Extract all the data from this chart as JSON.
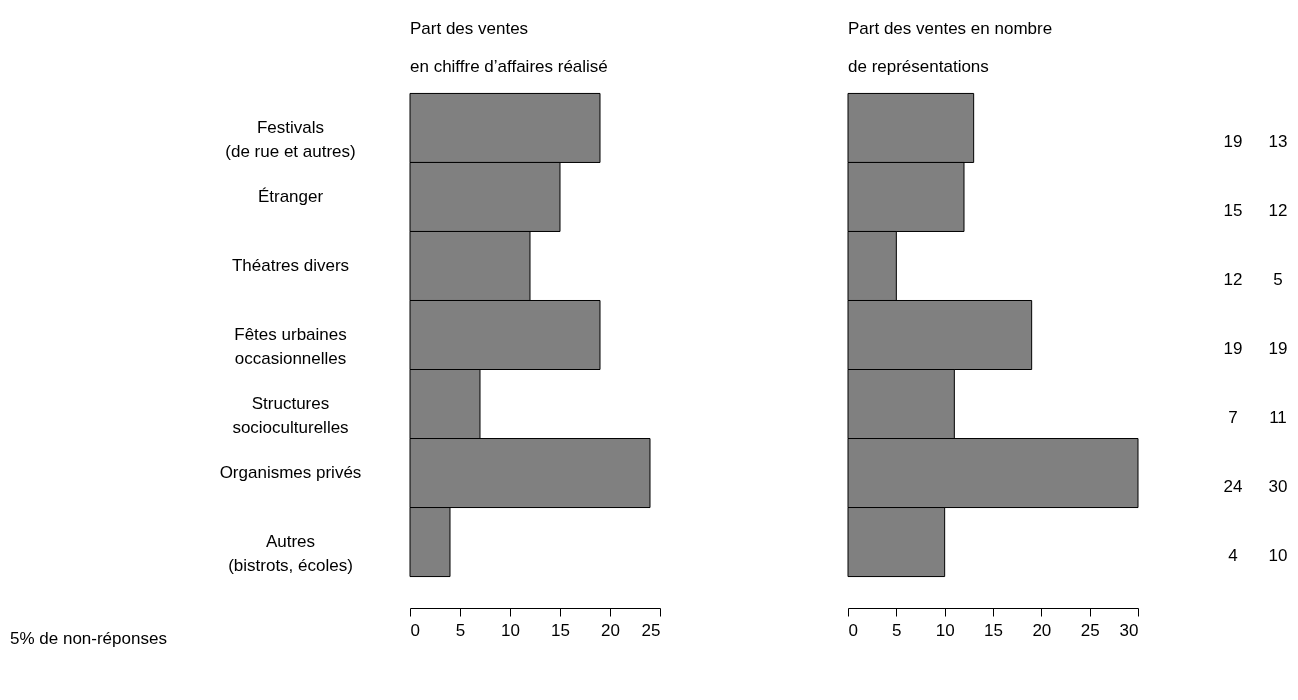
{
  "chart_data": [
    {
      "type": "bar",
      "orientation": "horizontal",
      "title": "Part des ventes\nen chiffre d’affaires réalisé",
      "categories": [
        "Festivals\n(de rue et autres)",
        "Étranger",
        "Théatres divers",
        "Fêtes urbaines\noccasionnelles",
        "Structures\nsocioculturelles",
        "Organismes privés",
        "Autres\n(bistrots, écoles)"
      ],
      "values": [
        19,
        15,
        12,
        19,
        7,
        24,
        4
      ],
      "color": "#808080",
      "xlim": [
        0,
        25
      ],
      "xticks": [
        0,
        5,
        10,
        15,
        20,
        25
      ],
      "data_labels": true,
      "annotations": [
        "5% de non-réponses"
      ]
    },
    {
      "type": "bar",
      "orientation": "horizontal",
      "title": "Part des ventes en nombre\nde représentations",
      "categories": [
        null,
        null,
        null,
        null,
        null,
        null,
        null
      ],
      "values": [
        13,
        12,
        5,
        19,
        11,
        30,
        10
      ],
      "color": "#808080",
      "xlim": [
        0,
        30
      ],
      "xticks": [
        0,
        5,
        10,
        15,
        20,
        25,
        30
      ],
      "data_labels": true,
      "tick_labels": "x"
    }
  ]
}
